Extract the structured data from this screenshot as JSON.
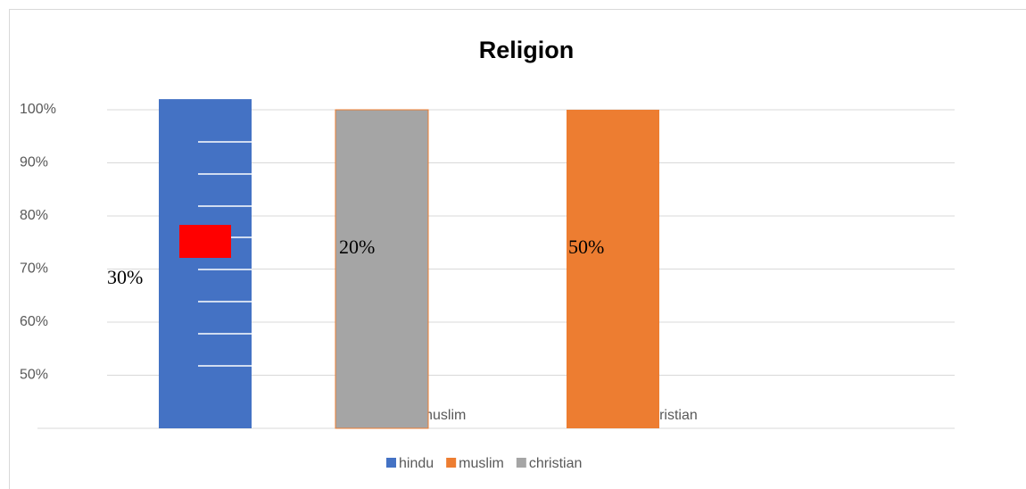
{
  "chart_data": {
    "type": "bar",
    "title": "Religion",
    "categories": [
      "hindu",
      "muslim",
      "christian"
    ],
    "values": [
      102,
      100,
      100
    ],
    "colors": [
      "#4472c4",
      "#a5a5a5",
      "#ed7d31"
    ],
    "ylim": [
      40,
      100
    ],
    "yticks": [
      {
        "value": 50,
        "label": "50%"
      },
      {
        "value": 60,
        "label": "60%"
      },
      {
        "value": 70,
        "label": "70%"
      },
      {
        "value": 80,
        "label": "80%"
      },
      {
        "value": 90,
        "label": "90%"
      },
      {
        "value": 100,
        "label": "100%"
      }
    ],
    "grid": true,
    "annotations": [
      "30%",
      "20%",
      "50%"
    ],
    "legend": [
      {
        "name": "hindu",
        "color": "#4472c4"
      },
      {
        "name": "muslim",
        "color": "#ed7d31"
      },
      {
        "name": "christian",
        "color": "#a5a5a5"
      }
    ]
  }
}
